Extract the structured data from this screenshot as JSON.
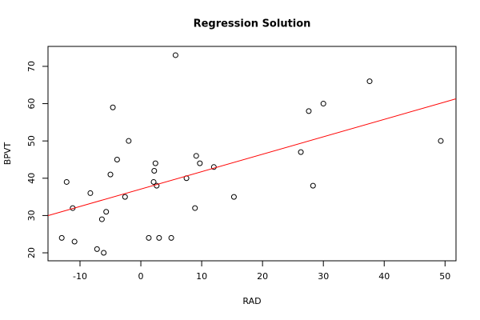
{
  "chart_data": {
    "type": "scatter",
    "title": "Regression Solution",
    "x_label": "RAD",
    "y_label": "BPVT",
    "x": [
      -13.0,
      -12.2,
      -11.2,
      -10.9,
      -8.3,
      -7.2,
      -6.4,
      -6.1,
      -5.7,
      -5.0,
      -4.6,
      -3.9,
      -2.6,
      -2.0,
      1.3,
      2.1,
      2.2,
      2.4,
      2.6,
      3.0,
      5.0,
      5.7,
      7.5,
      8.9,
      9.1,
      9.7,
      12.0,
      15.3,
      26.3,
      27.6,
      28.3,
      30.0,
      37.6,
      49.3
    ],
    "y": [
      24,
      39,
      32,
      23,
      36,
      21,
      29,
      20,
      31,
      41,
      59,
      45,
      35,
      50,
      24,
      39,
      42,
      44,
      38,
      24,
      24,
      73,
      40,
      32,
      46,
      44,
      43,
      35,
      47,
      58,
      38,
      60,
      66,
      50
    ],
    "color": "#000000",
    "regression": {
      "intercept": 37.1,
      "slope": 0.467,
      "color": "#ff0000"
    },
    "xlim": [
      -15.26,
      51.8
    ],
    "ylim": [
      17.86,
      75.35
    ],
    "xticks": [
      -10,
      0,
      10,
      20,
      30,
      40,
      50
    ],
    "yticks": [
      20,
      30,
      40,
      50,
      60,
      70
    ],
    "grid": false
  }
}
